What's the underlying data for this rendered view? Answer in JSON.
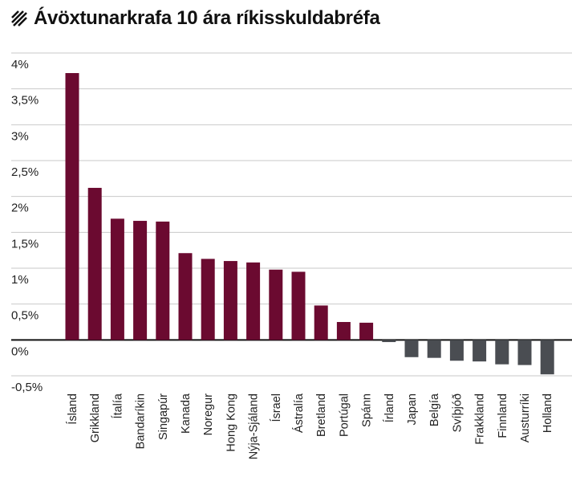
{
  "header": {
    "title": "Ávöxtunarkrafa 10 ára ríkisskuldabréfa",
    "icon": "hatch-icon"
  },
  "chart_data": {
    "type": "bar",
    "title": "Ávöxtunarkrafa 10 ára ríkisskuldabréfa",
    "xlabel": "",
    "ylabel": "",
    "ylim": [
      -0.5,
      4
    ],
    "yticks": [
      4,
      3.5,
      3,
      2.5,
      2,
      1.5,
      1,
      0.5,
      0,
      -0.5
    ],
    "ytick_labels": [
      "4%",
      "3,5%",
      "3%",
      "2,5%",
      "2%",
      "1,5%",
      "1%",
      "0,5%",
      "0%",
      "-0,5%"
    ],
    "grid": "horizontal",
    "categories": [
      "Ísland",
      "Grikkland",
      "Ítalía",
      "Bandaríkin",
      "Singapúr",
      "Kanada",
      "Noregur",
      "Hong Kong",
      "Nýja-Sjáland",
      "Ísrael",
      "Ástralía",
      "Bretland",
      "Portúgal",
      "Spánn",
      "Írland",
      "Japan",
      "Belgía",
      "Svíþjóð",
      "Frakkland",
      "Finnland",
      "Austurríki",
      "Holland"
    ],
    "values": [
      3.72,
      2.12,
      1.69,
      1.66,
      1.65,
      1.21,
      1.13,
      1.1,
      1.08,
      0.98,
      0.95,
      0.48,
      0.25,
      0.24,
      -0.03,
      -0.24,
      -0.25,
      -0.29,
      -0.3,
      -0.34,
      -0.35,
      -0.48
    ],
    "colors": {
      "positive": "#6b0a30",
      "negative": "#4a4d52"
    }
  }
}
